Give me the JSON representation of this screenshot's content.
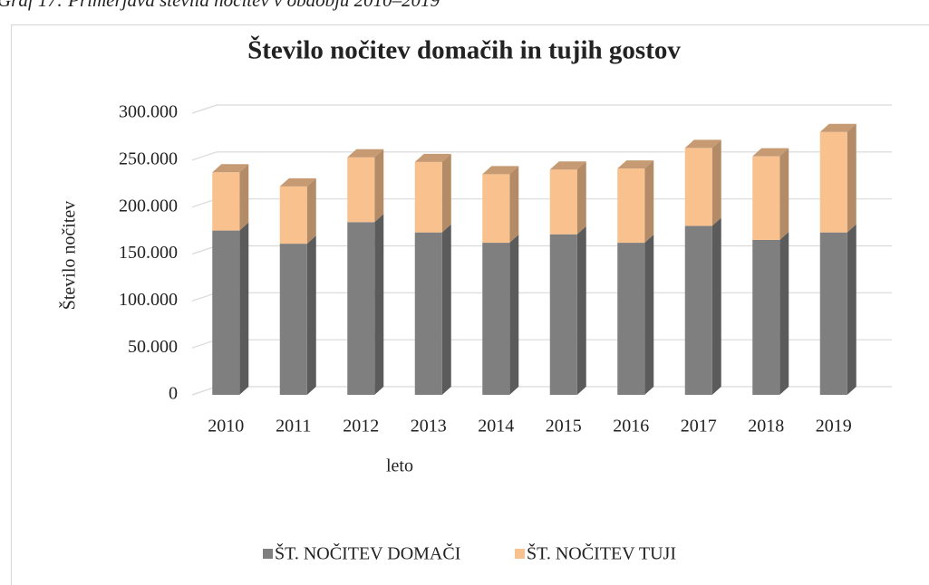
{
  "caption": "Graf 17: Primerjava števila nočitev v obdobju 2010–2019",
  "chart_data": {
    "type": "bar3d_stacked",
    "title": "Število nočitev domačih in tujih gostov",
    "x_label": "leto",
    "y_label": "Število nočitev",
    "categories": [
      "2010",
      "2011",
      "2012",
      "2013",
      "2014",
      "2015",
      "2016",
      "2017",
      "2018",
      "2019"
    ],
    "series": [
      {
        "name": "ŠT. NOČITEV DOMAČI",
        "color": "#7f7f7f",
        "values": [
          175000,
          161000,
          184000,
          173000,
          162000,
          171000,
          162000,
          180000,
          165000,
          173000
        ]
      },
      {
        "name": "ŠT. NOČITEV TUJI",
        "color": "#f8c18e",
        "values": [
          62000,
          61000,
          69000,
          75000,
          73000,
          69000,
          79000,
          83000,
          89000,
          107000
        ]
      }
    ],
    "ylim": [
      0,
      300000
    ],
    "yticks": [
      0,
      {
        "value": 50000,
        "label": "50.000"
      },
      {
        "value": 100000,
        "label": "100.000"
      },
      {
        "value": 150000,
        "label": "150.000"
      },
      {
        "value": 200000,
        "label": "200.000"
      },
      {
        "value": 250000,
        "label": "250.000"
      },
      {
        "value": 300000,
        "label": "300.000"
      }
    ],
    "grid": true,
    "legend": "bottom"
  }
}
